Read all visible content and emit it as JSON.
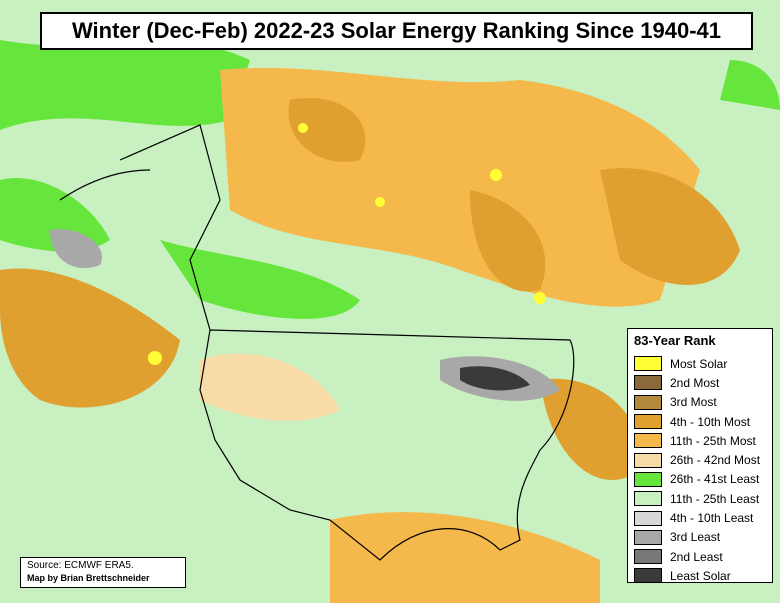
{
  "title": "Winter (Dec-Feb) 2022-23 Solar Energy Ranking Since 1940-41",
  "legend": {
    "title": "83-Year Rank",
    "items": [
      {
        "label": "Most Solar",
        "color": "#ffff33"
      },
      {
        "label": "2nd Most",
        "color": "#8b6a3a"
      },
      {
        "label": "3rd Most",
        "color": "#b38a3c"
      },
      {
        "label": "4th - 10th Most",
        "color": "#e0a030"
      },
      {
        "label": "11th - 25th Most",
        "color": "#f5b84a"
      },
      {
        "label": "26th - 42nd Most",
        "color": "#f8dca8"
      },
      {
        "label": "26th - 41st Least",
        "color": "#66e63c"
      },
      {
        "label": "11th - 25th Least",
        "color": "#c8f0c0"
      },
      {
        "label": "4th - 10th Least",
        "color": "#d8d8d8"
      },
      {
        "label": "3rd Least",
        "color": "#a8a8a8"
      },
      {
        "label": "2nd Least",
        "color": "#787878"
      },
      {
        "label": "Least Solar",
        "color": "#3a3a3a"
      }
    ]
  },
  "source": "Source: ECMWF ERA5.",
  "credit": "Map by Brian Brettschneider"
}
